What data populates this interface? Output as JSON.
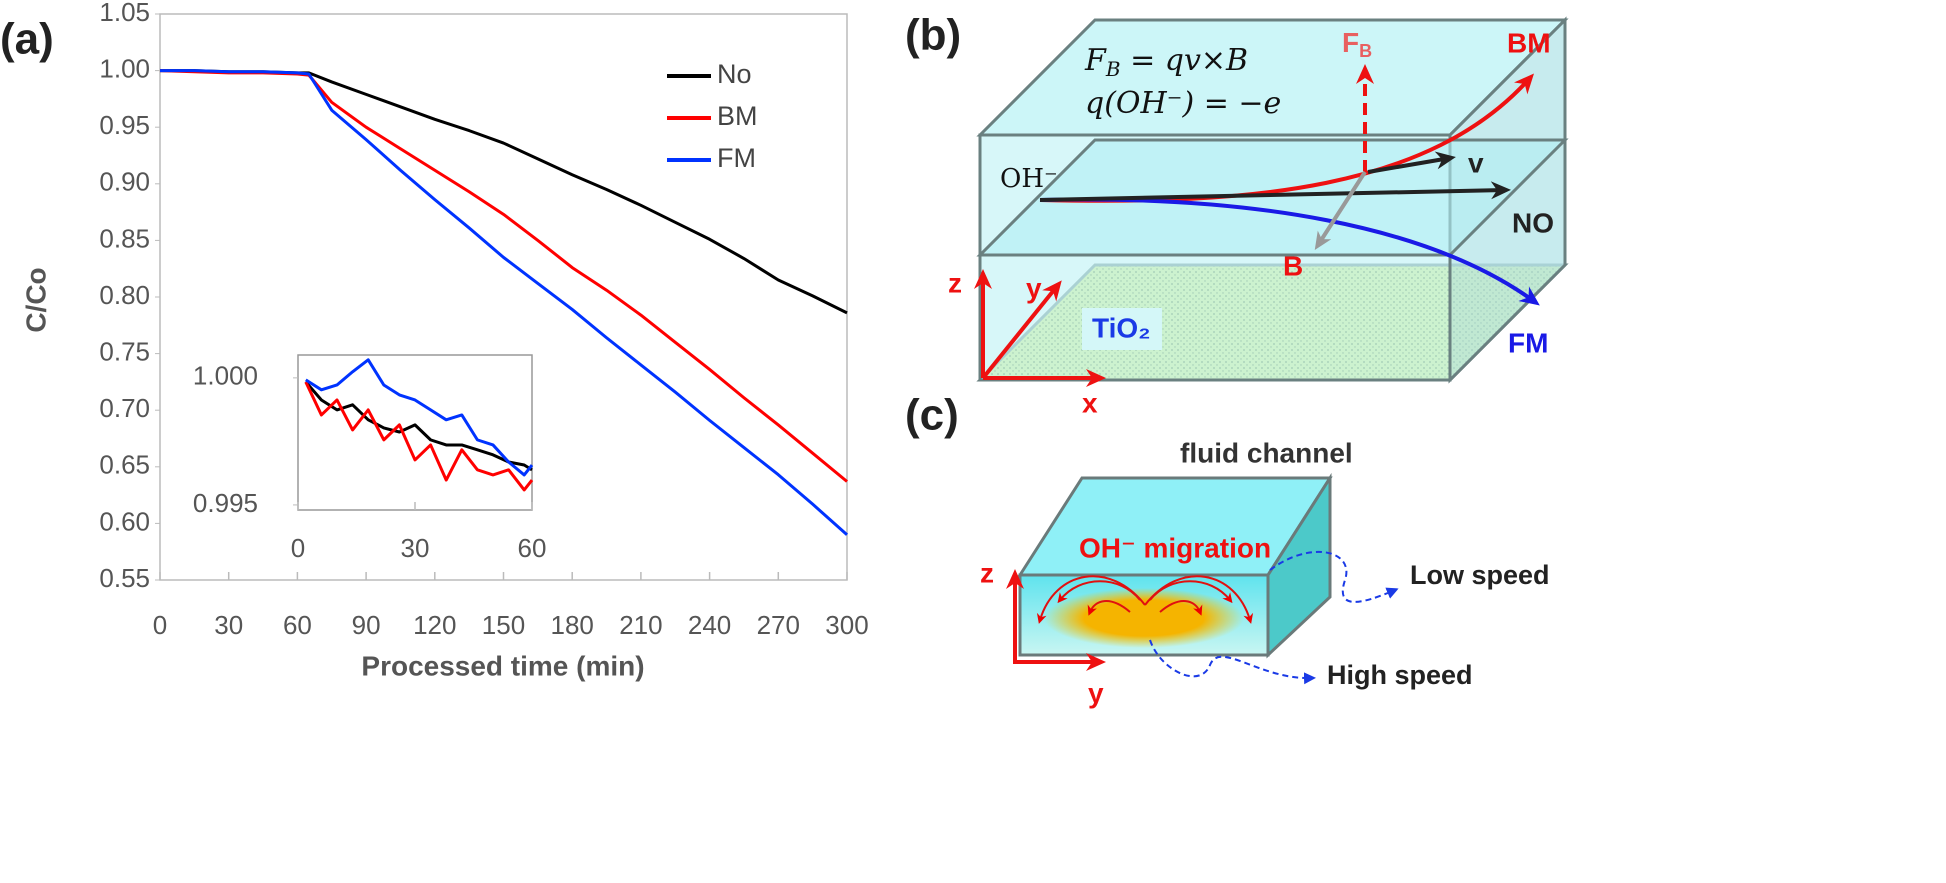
{
  "chart_data": [
    {
      "type": "line",
      "panel_label": "(a)",
      "xlabel": "Processed time (min)",
      "ylabel": "C/Co",
      "x": [
        0,
        15,
        30,
        45,
        60,
        65,
        75,
        90,
        105,
        120,
        135,
        150,
        165,
        180,
        195,
        210,
        225,
        240,
        255,
        270,
        285,
        300
      ],
      "series": [
        {
          "name": "No",
          "color": "#000000",
          "values": [
            1.0,
            1.0,
            0.999,
            0.999,
            0.998,
            0.998,
            0.99,
            0.979,
            0.968,
            0.957,
            0.947,
            0.936,
            0.922,
            0.908,
            0.895,
            0.881,
            0.866,
            0.851,
            0.834,
            0.815,
            0.801,
            0.786
          ]
        },
        {
          "name": "BM",
          "color": "#ff0000",
          "values": [
            1.0,
            0.999,
            0.998,
            0.998,
            0.997,
            0.996,
            0.972,
            0.95,
            0.931,
            0.912,
            0.893,
            0.873,
            0.85,
            0.826,
            0.806,
            0.784,
            0.76,
            0.736,
            0.711,
            0.687,
            0.662,
            0.637
          ]
        },
        {
          "name": "FM",
          "color": "#0033ff",
          "values": [
            1.0,
            1.0,
            0.999,
            0.999,
            0.998,
            0.997,
            0.965,
            0.939,
            0.912,
            0.886,
            0.861,
            0.835,
            0.812,
            0.789,
            0.764,
            0.74,
            0.716,
            0.691,
            0.667,
            0.643,
            0.617,
            0.59
          ]
        }
      ],
      "xlim": [
        0,
        300
      ],
      "xticks": [
        0,
        30,
        60,
        90,
        120,
        150,
        180,
        210,
        240,
        270,
        300
      ],
      "ylim": [
        0.55,
        1.05
      ],
      "yticks": [
        0.55,
        {
          "value": 0.6,
          "label": "0.60"
        },
        0.65,
        {
          "value": 0.7,
          "label": "0.70"
        },
        0.75,
        {
          "value": 0.8,
          "label": "0.80"
        },
        0.85,
        {
          "value": 0.9,
          "label": "0.90"
        },
        0.95,
        {
          "value": 1,
          "label": "1.00"
        },
        1.05
      ],
      "legend": "upper right",
      "grid": false
    },
    {
      "type": "line",
      "x": [
        2,
        6,
        10,
        14,
        18,
        22,
        26,
        30,
        34,
        38,
        42,
        46,
        50,
        54,
        58,
        60
      ],
      "series": [
        {
          "color": "#000000",
          "values": [
            0.99984,
            0.99913,
            0.99874,
            0.99894,
            0.99835,
            0.99803,
            0.99787,
            0.99815,
            0.99756,
            0.99736,
            0.99736,
            0.99717,
            0.99697,
            0.99669,
            0.99657,
            0.99638
          ]
        },
        {
          "color": "#ff0000",
          "values": [
            0.99984,
            0.99854,
            0.99913,
            0.99795,
            0.99874,
            0.99756,
            0.99815,
            0.99677,
            0.99736,
            0.99598,
            0.99717,
            0.99638,
            0.99618,
            0.99638,
            0.99559,
            0.99598
          ]
        },
        {
          "color": "#0033ff",
          "values": [
            0.99992,
            0.99953,
            0.99972,
            1.00024,
            1.00071,
            0.99972,
            0.99933,
            0.99913,
            0.99874,
            0.99835,
            0.99854,
            0.99756,
            0.99736,
            0.99669,
            0.99618,
            0.99657
          ]
        }
      ],
      "xlim": [
        0,
        60
      ],
      "xticks": [
        0,
        30,
        60
      ],
      "ylim": [
        0.9948,
        1.0009
      ],
      "yticks": [
        {
          "value": 1,
          "label": "1.000"
        },
        0.995
      ],
      "grid": false
    }
  ],
  "panel_b": {
    "label": "(b)",
    "equation_1": {
      "lhs": "F",
      "sub": "B",
      "rhs": " = qv×B"
    },
    "equation_2": "q(OH⁻) = −e",
    "force": {
      "main": "F",
      "sub": "B"
    },
    "bm": "BM",
    "v": "v",
    "ion": "OH⁻",
    "no": "NO",
    "b": "B",
    "axis_z": "z",
    "axis_y": "y",
    "axis_x": "x",
    "substrate": "TiO₂",
    "fm": "FM"
  },
  "panel_c": {
    "label": "(c)",
    "title": "fluid channel",
    "migration": "OH⁻ migration",
    "axis_z": "z",
    "axis_y": "y",
    "low": "Low speed",
    "high": "High speed"
  }
}
